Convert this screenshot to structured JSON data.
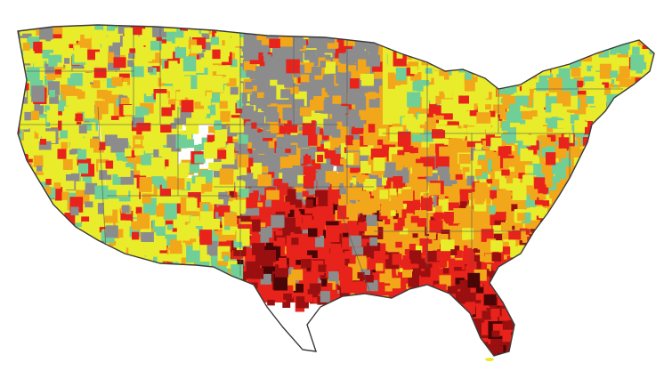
{
  "map": {
    "palette": {
      "lowest": "#6fcf97",
      "low": "#e9ec2a",
      "moderate": "#f2a71b",
      "high": "#e8231b",
      "very_high": "#9a1010",
      "extreme": "#4a0606",
      "no_data": "#8c8c8c",
      "borders": "#555555",
      "background": "#ffffff"
    },
    "region_fills": [
      {
        "region": "pacific-northwest",
        "category": "low"
      },
      {
        "region": "california",
        "category": "low"
      },
      {
        "region": "great-basin",
        "category": "low"
      },
      {
        "region": "southwest",
        "category": "low"
      },
      {
        "region": "northern-rockies",
        "category": "low"
      },
      {
        "region": "northern-plains",
        "category": "no_data"
      },
      {
        "region": "central-plains",
        "category": "no_data"
      },
      {
        "region": "southern-plains",
        "category": "high"
      },
      {
        "region": "upper-midwest",
        "category": "moderate"
      },
      {
        "region": "great-lakes",
        "category": "low"
      },
      {
        "region": "ohio-valley",
        "category": "moderate"
      },
      {
        "region": "northeast",
        "category": "low"
      },
      {
        "region": "mid-atlantic",
        "category": "moderate"
      },
      {
        "region": "southeast",
        "category": "moderate"
      },
      {
        "region": "gulf-coast",
        "category": "high"
      },
      {
        "region": "florida",
        "category": "very_high"
      }
    ]
  }
}
